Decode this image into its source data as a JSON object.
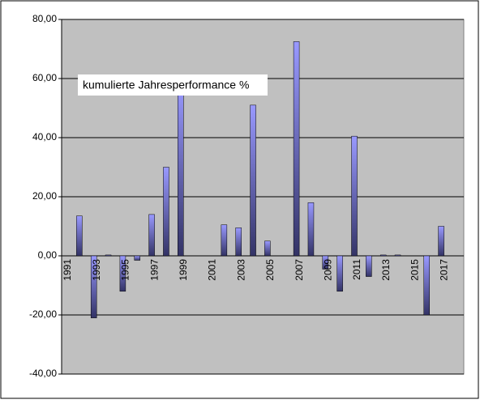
{
  "chart_data": {
    "type": "bar",
    "annotation": "kumulierte Jahresperformance %",
    "categories": [
      "1991",
      null,
      "1993",
      null,
      "1995",
      null,
      "1997",
      null,
      "1999",
      null,
      "2001",
      null,
      "2003",
      null,
      "2005",
      null,
      "2007",
      null,
      "2009",
      null,
      "2011",
      null,
      "2013",
      null,
      "2015",
      null,
      "2017",
      null
    ],
    "values": [
      null,
      13.5,
      -21,
      0.3,
      -12,
      -1.5,
      14,
      30,
      58,
      0,
      0,
      10.5,
      9.5,
      51,
      5,
      0,
      72.5,
      18,
      -4.5,
      -12,
      40.5,
      -7,
      0.3,
      0.3,
      0,
      -20,
      10,
      null
    ],
    "color": "#9999ff",
    "ylim": [
      -40,
      80
    ],
    "yticks": [
      {
        "value": -40,
        "label": "-40,00"
      },
      {
        "value": -20,
        "label": "-20,00"
      },
      {
        "value": 0,
        "label": "0,00"
      },
      {
        "value": 20,
        "label": "20,00"
      },
      {
        "value": 40,
        "label": "40,00"
      },
      {
        "value": 60,
        "label": "60,00"
      },
      {
        "value": 80,
        "label": "80,00"
      }
    ],
    "grid": true
  }
}
